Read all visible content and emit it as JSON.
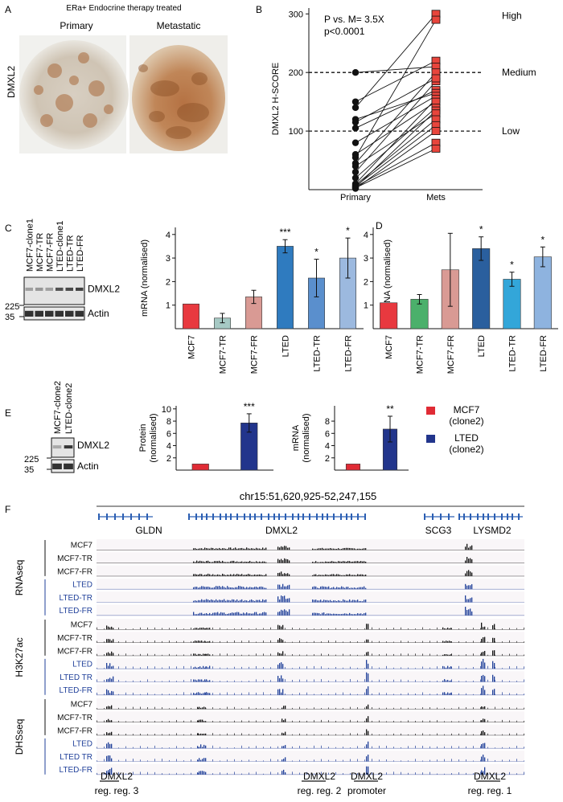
{
  "panel_letters": {
    "A": "A",
    "B": "B",
    "C": "C",
    "D": "D",
    "E": "E",
    "F": "F"
  },
  "panel_a": {
    "title": "ERa+ Endocrine therapy treated",
    "col_primary": "Primary",
    "col_metastatic": "Metastatic",
    "row_label": "DMXL2"
  },
  "chart_data": [
    {
      "id": "panel-b",
      "type": "scatter",
      "title": "",
      "ylabel": "DMXL2 H-SCORE",
      "xlabel": "",
      "categories": [
        "Primary",
        "Mets"
      ],
      "ylim": [
        0,
        310
      ],
      "yticks": [
        100,
        200,
        300
      ],
      "reference_lines": [
        {
          "value": 200,
          "label": "Medium",
          "style": "dashed"
        },
        {
          "value": 100,
          "label": "Low",
          "style": "dashed"
        }
      ],
      "top_label": "High",
      "annotation_line1": "P vs. M= 3.5X",
      "annotation_line2": "p<0.0001",
      "series": [
        {
          "name": "Primary",
          "marker": "circle",
          "color": "#111111",
          "values": [
            200,
            150,
            140,
            120,
            115,
            105,
            80,
            60,
            55,
            45,
            40,
            30,
            20,
            10,
            8,
            6,
            5,
            4,
            3,
            2
          ]
        },
        {
          "name": "Mets",
          "marker": "square",
          "color": "#e8453c",
          "values": [
            300,
            290,
            220,
            210,
            200,
            185,
            170,
            165,
            160,
            155,
            150,
            140,
            135,
            130,
            120,
            110,
            100,
            80,
            70,
            190
          ]
        }
      ],
      "pairs": [
        [
          200,
          210
        ],
        [
          150,
          220
        ],
        [
          140,
          300
        ],
        [
          120,
          165
        ],
        [
          115,
          190
        ],
        [
          105,
          170
        ],
        [
          80,
          160
        ],
        [
          60,
          150
        ],
        [
          55,
          290
        ],
        [
          45,
          200
        ],
        [
          40,
          130
        ],
        [
          30,
          185
        ],
        [
          20,
          140
        ],
        [
          10,
          155
        ],
        [
          8,
          120
        ],
        [
          6,
          110
        ],
        [
          5,
          80
        ],
        [
          4,
          135
        ],
        [
          3,
          70
        ],
        [
          2,
          100
        ]
      ]
    },
    {
      "id": "panel-c",
      "type": "bar",
      "ylabel": "mRNA (normalised)",
      "ylim": [
        0,
        4.3
      ],
      "yticks": [
        1,
        2,
        3,
        4
      ],
      "categories": [
        "MCF7",
        "MCF7-TR",
        "MCF7-FR",
        "LTED",
        "LTED-TR",
        "LTED-FR"
      ],
      "values": [
        1.05,
        0.45,
        1.35,
        3.5,
        2.15,
        3.0
      ],
      "errors": [
        0,
        0.2,
        0.28,
        0.28,
        0.8,
        0.85
      ],
      "significance": [
        "",
        "",
        "",
        "***",
        "*",
        "*"
      ],
      "colors": [
        "#e8393f",
        "#a6c9c4",
        "#d99a94",
        "#2f7bbf",
        "#5a8fcd",
        "#9cb9df"
      ]
    },
    {
      "id": "panel-d",
      "type": "bar",
      "ylabel": "mRNA (normalised)",
      "ylim": [
        0,
        4.3
      ],
      "yticks": [
        1,
        2,
        3,
        4
      ],
      "categories": [
        "MCF7",
        "MCF7-TR",
        "MCF7-FR",
        "LTED",
        "LTED-TR",
        "LTED-FR"
      ],
      "values": [
        1.1,
        1.25,
        2.5,
        3.4,
        2.1,
        3.05
      ],
      "errors": [
        0,
        0.2,
        1.55,
        0.5,
        0.3,
        0.42
      ],
      "significance": [
        "",
        "",
        "",
        "*",
        "*",
        "*"
      ],
      "colors": [
        "#e8393f",
        "#4bb06b",
        "#d99a94",
        "#2a5f9e",
        "#33a6d9",
        "#8eb3df"
      ]
    },
    {
      "id": "panel-e-protein",
      "type": "bar",
      "ylabel_line1": "Protein",
      "ylabel_line2": "(normalised)",
      "ylim": [
        0,
        10.5
      ],
      "yticks": [
        2,
        4,
        6,
        8,
        10
      ],
      "categories": [
        "MCF7 (clone2)",
        "LTED (clone2)"
      ],
      "values": [
        1.0,
        7.7
      ],
      "errors": [
        0,
        1.5
      ],
      "significance": [
        "",
        "***"
      ],
      "colors": [
        "#e02b35",
        "#22358c"
      ]
    },
    {
      "id": "panel-e-mrna",
      "type": "bar",
      "ylabel": "mRNA",
      "ylabel_line2": "(normalised)",
      "ylim": [
        0,
        10.5
      ],
      "yticks": [
        2,
        4,
        6,
        8
      ],
      "categories": [
        "MCF7 (clone2)",
        "LTED (clone2)"
      ],
      "values": [
        1.0,
        6.7
      ],
      "errors": [
        0,
        2.1
      ],
      "significance": [
        "",
        "**"
      ],
      "colors": [
        "#e02b35",
        "#22358c"
      ]
    }
  ],
  "panel_c_blot": {
    "lanes": [
      "MCF7-clone1",
      "MCF7-TR",
      "MCF7-FR",
      "LTED-clone1",
      "LTED-TR",
      "LTED-FR"
    ],
    "band1": "DMXL2",
    "band2": "Actin",
    "mw1": "225",
    "mw2": "35"
  },
  "panel_e_blot": {
    "lanes": [
      "MCF7-clone2",
      "LTED-clone2"
    ],
    "band1": "DMXL2",
    "band2": "Actin",
    "mw1": "225",
    "mw2": "35"
  },
  "panel_e_legend": [
    {
      "line1": "MCF7",
      "line2": "(clone2)",
      "color": "#e02b35"
    },
    {
      "line1": "LTED",
      "line2": "(clone2)",
      "color": "#22358c"
    }
  ],
  "panel_f": {
    "coords": "chr15:51,620,925-52,247,155",
    "genes": [
      "GLDN",
      "DMXL2",
      "SCG3",
      "LYSMD2"
    ],
    "groups": [
      {
        "name": "RNAseq",
        "tracks": [
          "MCF7",
          "MCF7-TR",
          "MCF7-FR",
          "LTED",
          "LTED-TR",
          "LTED-FR"
        ]
      },
      {
        "name": "H3K27ac",
        "tracks": [
          "MCF7",
          "MCF7-TR",
          "MCF7-FR",
          "LTED",
          "LTED TR",
          "LTED-FR"
        ]
      },
      {
        "name": "DHSseq",
        "tracks": [
          "MCF7",
          "MCF7-TR",
          "MCF7-FR",
          "LTED",
          "LTED TR",
          "LTED-FR"
        ]
      }
    ],
    "regions": [
      {
        "line1": "DMXL2",
        "line2": "reg. reg. 3"
      },
      {
        "line1": "DMXL2",
        "line2": "reg. reg. 2"
      },
      {
        "line1": "DMXL2",
        "line2": "promoter"
      },
      {
        "line1": "DMXL2",
        "line2": "reg. reg. 1"
      }
    ],
    "colors": {
      "mcf7": "#111111",
      "lted": "#1f3f99"
    }
  }
}
